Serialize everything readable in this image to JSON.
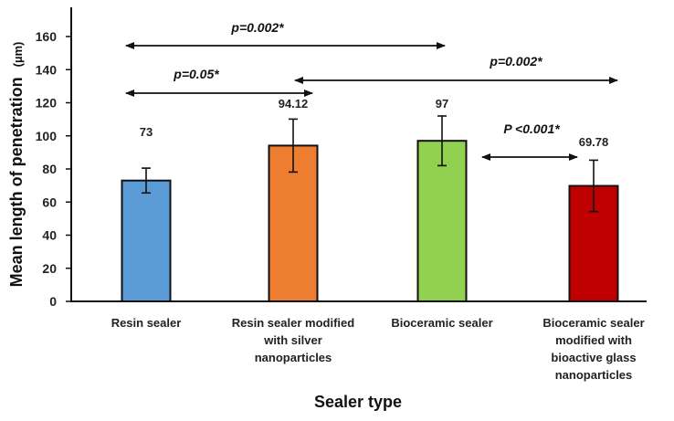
{
  "chart_data": {
    "type": "bar",
    "categories": [
      [
        "Resin sealer"
      ],
      [
        "Resin sealer modified",
        "with silver",
        "nanoparticles"
      ],
      [
        "Bioceramic sealer"
      ],
      [
        "Bioceramic sealer",
        "modified with",
        "bioactive glass",
        "nanoparticles"
      ]
    ],
    "values": [
      73,
      94.12,
      97,
      69.78
    ],
    "value_labels": [
      "73",
      "94.12",
      "97",
      "69.78"
    ],
    "errors": [
      7.5,
      16,
      15,
      15.5
    ],
    "colors": [
      "#5b9bd5",
      "#ed7d31",
      "#92d050",
      "#c00000"
    ],
    "xlabel": "Sealer type",
    "ylabel": "Mean length of penetration",
    "ylabel_unit": "(µm)",
    "ylim": [
      0,
      160
    ],
    "yticks": [
      0,
      20,
      40,
      60,
      80,
      100,
      120,
      140,
      160
    ],
    "grid": false,
    "significance": [
      {
        "label": "p=0.002*",
        "from": 0,
        "to": 2,
        "y": 154,
        "label_y": 163
      },
      {
        "label": "p=0.05*",
        "from": 0,
        "to": 1,
        "y": 126,
        "label_y": 134
      },
      {
        "label": "p=0.002*",
        "from": 1,
        "to": 3,
        "y": 134,
        "label_y": 143
      },
      {
        "label": "P <0.001*",
        "from": 2,
        "to": 3,
        "y": 88,
        "label_y": 102
      }
    ]
  }
}
